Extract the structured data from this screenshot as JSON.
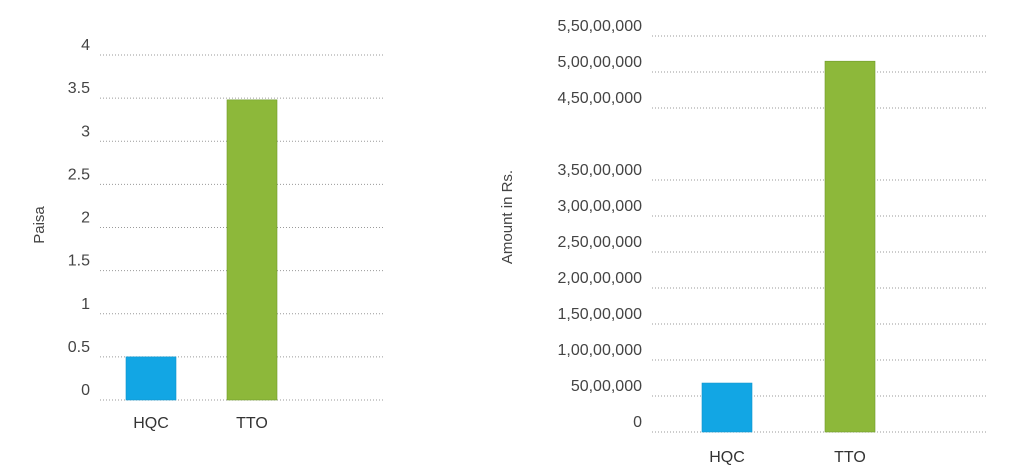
{
  "chart_data": [
    {
      "type": "bar",
      "title": "",
      "xlabel": "",
      "ylabel": "Paisa",
      "ylim": [
        0,
        4
      ],
      "yticks": [
        0,
        0.5,
        1,
        1.5,
        2,
        2.5,
        3,
        3.5,
        4
      ],
      "ytick_labels": [
        "0",
        "0.5",
        "1",
        "1.5",
        "2",
        "2.5",
        "3",
        "3.5",
        "4"
      ],
      "categories": [
        "HQC",
        "TTO"
      ],
      "values": [
        0.5,
        3.48
      ],
      "colors": [
        "#12a6e4",
        "#8db83a"
      ],
      "grid": true
    },
    {
      "type": "bar",
      "title": "",
      "xlabel": "",
      "ylabel": "Amount in Rs.",
      "ylim": [
        0,
        55000000
      ],
      "yticks": [
        0,
        5000000,
        10000000,
        15000000,
        20000000,
        25000000,
        30000000,
        35000000,
        45000000,
        50000000,
        55000000
      ],
      "ytick_labels": [
        "0",
        "50,00,000",
        "1,00,00,000",
        "1,50,00,000",
        "2,00,00,000",
        "2,50,00,000",
        "3,00,00,000",
        "3,50,00,000",
        "4,50,00,000",
        "5,00,00,000",
        "5,50,00,000"
      ],
      "categories": [
        "HQC",
        "TTO"
      ],
      "values": [
        6800000,
        51500000
      ],
      "colors": [
        "#12a6e4",
        "#8db83a"
      ],
      "grid": true
    }
  ]
}
